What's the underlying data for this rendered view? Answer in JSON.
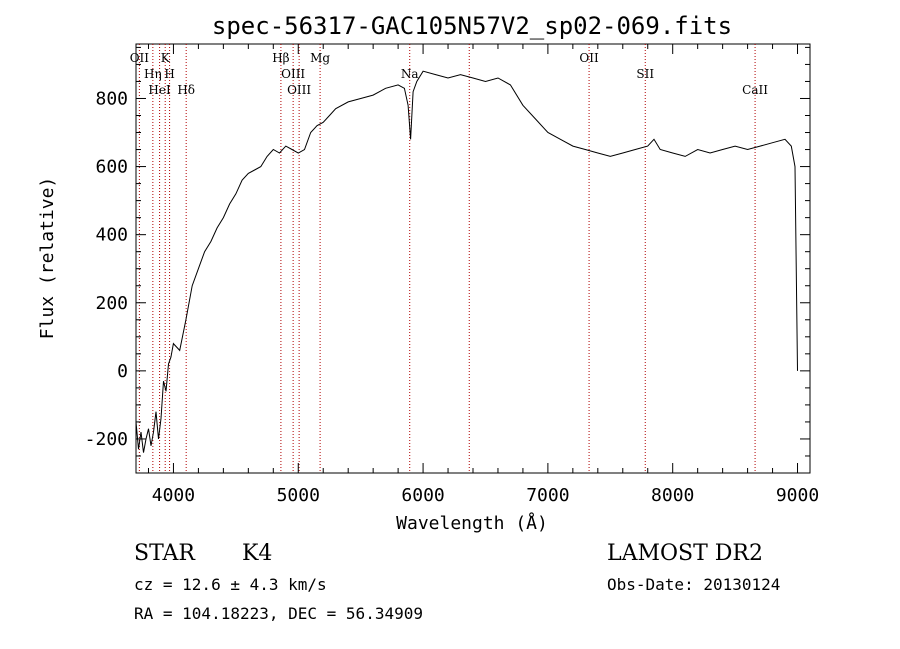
{
  "chart_data": {
    "type": "line",
    "title": "spec-56317-GAC105N57V2_sp02-069.fits",
    "xlabel": "Wavelength (Å)",
    "ylabel": "Flux (relative)",
    "xlim": [
      3700,
      9100
    ],
    "ylim": [
      -300,
      960
    ],
    "xticks": [
      4000,
      5000,
      6000,
      7000,
      8000,
      9000
    ],
    "yticks": [
      -200,
      0,
      200,
      400,
      600,
      800
    ],
    "grid": false,
    "series": [
      {
        "color": "#000000",
        "x": [
          3700,
          3720,
          3740,
          3760,
          3780,
          3800,
          3820,
          3840,
          3860,
          3880,
          3900,
          3920,
          3940,
          3960,
          3980,
          4000,
          4050,
          4100,
          4150,
          4200,
          4250,
          4300,
          4350,
          4400,
          4450,
          4500,
          4550,
          4600,
          4650,
          4700,
          4750,
          4800,
          4850,
          4900,
          4950,
          5000,
          5050,
          5100,
          5150,
          5200,
          5250,
          5300,
          5400,
          5500,
          5600,
          5700,
          5800,
          5850,
          5880,
          5900,
          5920,
          5950,
          6000,
          6100,
          6200,
          6300,
          6400,
          6500,
          6600,
          6700,
          6800,
          6900,
          7000,
          7100,
          7200,
          7300,
          7400,
          7500,
          7600,
          7700,
          7800,
          7850,
          7900,
          8000,
          8100,
          8200,
          8300,
          8400,
          8500,
          8600,
          8700,
          8800,
          8900,
          8950,
          8980,
          9000
        ],
        "y": [
          -150,
          -230,
          -180,
          -240,
          -200,
          -170,
          -220,
          -180,
          -120,
          -200,
          -140,
          -30,
          -60,
          20,
          40,
          80,
          60,
          150,
          250,
          300,
          350,
          380,
          420,
          450,
          490,
          520,
          560,
          580,
          590,
          600,
          630,
          650,
          640,
          660,
          650,
          640,
          650,
          700,
          720,
          730,
          750,
          770,
          790,
          800,
          810,
          830,
          840,
          830,
          780,
          680,
          820,
          850,
          880,
          870,
          860,
          870,
          860,
          850,
          860,
          840,
          780,
          740,
          700,
          680,
          660,
          650,
          640,
          630,
          640,
          650,
          660,
          680,
          650,
          640,
          630,
          650,
          640,
          650,
          660,
          650,
          660,
          670,
          680,
          660,
          600,
          0
        ]
      }
    ],
    "lines": [
      {
        "label": "OII",
        "x": 3727
      },
      {
        "label": "Hη",
        "x": 3835
      },
      {
        "label": "HeI",
        "x": 3889
      },
      {
        "label": "K",
        "x": 3934
      },
      {
        "label": "H",
        "x": 3969
      },
      {
        "label": "Hδ",
        "x": 4102
      },
      {
        "label": "Hβ",
        "x": 4861
      },
      {
        "label": "OIII",
        "x": 4959
      },
      {
        "label": "OIII",
        "x": 5007
      },
      {
        "label": "Mg",
        "x": 5175
      },
      {
        "label": "Na",
        "x": 5893
      },
      {
        "label": "",
        "x": 6370
      },
      {
        "label": "OII",
        "x": 7330
      },
      {
        "label": "SII",
        "x": 7780
      },
      {
        "label": "CaII",
        "x": 8660
      }
    ]
  },
  "info": {
    "class": "STAR",
    "subclass": "K4",
    "survey": "LAMOST DR2",
    "cz": "cz = 12.6 ± 4.3 km/s",
    "obs_date": "Obs-Date: 20130124",
    "radec": "RA = 104.18223, DEC =  56.34909"
  },
  "colors": {
    "spectrum": "#000000",
    "line_marker": "#b00000"
  }
}
